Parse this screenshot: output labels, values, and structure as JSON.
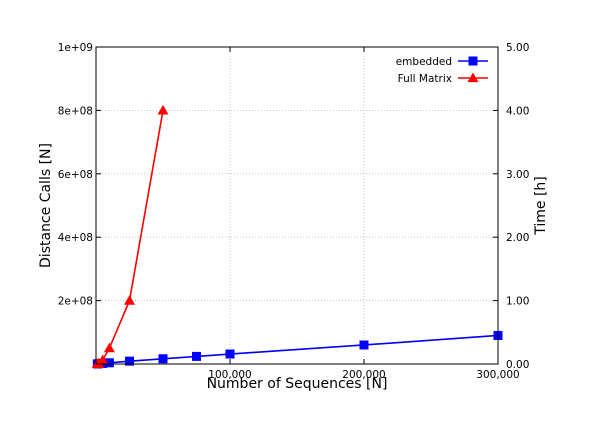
{
  "chart_data": {
    "type": "line",
    "xlabel": "Number of Sequences [N]",
    "ylabel": "Distance Calls [N]",
    "y2label": "Time [h]",
    "xlim": [
      0,
      300000
    ],
    "ylim": [
      0,
      1000000000
    ],
    "y2lim": [
      0,
      5
    ],
    "x_ticks": [
      100000,
      200000,
      300000
    ],
    "x_tick_labels": [
      "100,000",
      "200,000",
      "300,000"
    ],
    "y_ticks": [
      200000000,
      400000000,
      600000000,
      800000000,
      1000000000
    ],
    "y_tick_labels": [
      "2e+08",
      "4e+08",
      "6e+08",
      "8e+08",
      "1e+09"
    ],
    "y2_ticks": [
      0,
      1,
      2,
      3,
      4,
      5
    ],
    "y2_tick_labels": [
      "0.00",
      "1.00",
      "2.00",
      "3.00",
      "4.00",
      "5.00"
    ],
    "grid": true,
    "legend_position": "top-right",
    "series": [
      {
        "name": "embedded",
        "color": "#0000ff",
        "marker": "square",
        "x": [
          1000,
          2000,
          5000,
          10000,
          25000,
          50000,
          75000,
          100000,
          200000,
          300000
        ],
        "y": [
          300000,
          700000,
          1800000,
          3800000,
          9000000,
          16500000,
          24000000,
          31500000,
          60000000,
          90000000
        ]
      },
      {
        "name": "Full Matrix",
        "color": "#ff0000",
        "marker": "triangle",
        "x": [
          1000,
          2000,
          5000,
          10000,
          25000,
          50000
        ],
        "y": [
          500000,
          2000000,
          12500000,
          50000000,
          200000000,
          800000000
        ]
      }
    ]
  }
}
